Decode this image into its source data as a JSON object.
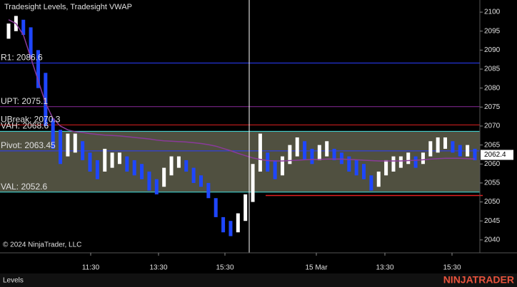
{
  "chart_data": {
    "type": "candlestick",
    "title": "Tradesight Levels, Tradesight VWAP",
    "copyright": "© 2024 NinjaTrader, LLC",
    "tab": "Levels",
    "brand": "NINJATRADER",
    "ylim": [
      2036.6,
      2103.2
    ],
    "yticks": [
      2100,
      2095,
      2090,
      2085,
      2080,
      2075,
      2070,
      2065,
      2060,
      2055,
      2050,
      2045,
      2040
    ],
    "x_labels": [
      "11:30",
      "13:30",
      "15:30",
      "15 Mar",
      "13:30",
      "15:30"
    ],
    "color_up": "#ffffff",
    "color_down": "#1e46ff",
    "low": [
      2093,
      2095,
      2094,
      2088,
      2080,
      2070,
      2064,
      2060,
      2062,
      2063,
      2061,
      2058,
      2056,
      2058,
      2059,
      2060,
      2058,
      2057,
      2056,
      2053,
      2052,
      2054,
      2057,
      2059,
      2058,
      2055,
      2054,
      2051,
      2046,
      2042,
      2041,
      2042,
      2045,
      2050,
      2058,
      2058,
      2056,
      2057,
      2060,
      2062,
      2061,
      2060,
      2061,
      2062,
      2061,
      2060,
      2058,
      2057,
      2056,
      2053,
      2054,
      2057,
      2058,
      2059,
      2060,
      2059,
      2060,
      2062,
      2063,
      2064,
      2063,
      2062,
      2062,
      2061
    ],
    "high": [
      2097,
      2099,
      2098,
      2096,
      2090,
      2084,
      2072,
      2069,
      2068,
      2068,
      2066,
      2063,
      2061,
      2064,
      2063,
      2063,
      2062,
      2061,
      2060,
      2058,
      2056,
      2059,
      2062,
      2062,
      2061,
      2059,
      2057,
      2055,
      2051,
      2046,
      2045,
      2047,
      2052,
      2060,
      2068,
      2063,
      2061,
      2062,
      2065,
      2067,
      2066,
      2064,
      2065,
      2066,
      2064,
      2063,
      2062,
      2061,
      2060,
      2057,
      2058,
      2061,
      2062,
      2062,
      2063,
      2062,
      2063,
      2066,
      2067,
      2067,
      2066,
      2065,
      2065,
      2064
    ],
    "vwap": {
      "name": "Tradesight VWAP",
      "color": "#8a3a9a",
      "values": [
        2098,
        2097,
        2094,
        2088,
        2082,
        2076,
        2072,
        2070,
        2069,
        2068.5,
        2068.3,
        2068,
        2067.8,
        2067.6,
        2067.5,
        2067.4,
        2067.2,
        2067,
        2066.8,
        2066.6,
        2066.3,
        2066.1,
        2066,
        2065.9,
        2065.8,
        2065.6,
        2065.4,
        2065.1,
        2064.7,
        2064.1,
        2063.5,
        2062.8,
        2062.2,
        2061.6,
        2061.2,
        2060.9,
        2060.8,
        2060.8,
        2060.9,
        2061,
        2061.1,
        2061.2,
        2061.2,
        2061.3,
        2061.3,
        2061.3,
        2061.2,
        2061.1,
        2061,
        2060.9,
        2060.8,
        2060.8,
        2060.8,
        2060.8,
        2060.9,
        2061,
        2061.1,
        2061.3,
        2061.4,
        2061.5,
        2061.5,
        2061.5,
        2061.4,
        2061.3
      ]
    },
    "levels": [
      {
        "label": "R1: 2086.6",
        "value": 2086.6,
        "color": "#2a3cff"
      },
      {
        "label": "UPT: 2075.1",
        "value": 2075.1,
        "color": "#8a2a9a"
      },
      {
        "label": "UBreak: 2070.3",
        "value": 2070.3,
        "color": "#e02020"
      },
      {
        "label": "VAH: 2068.6",
        "value": 2068.6,
        "color": "#40e0e0"
      },
      {
        "label": "Pivot: 2063.45",
        "value": 2063.45,
        "color": "#2a3cff"
      },
      {
        "label": "VAL: 2052.6",
        "value": 2052.6,
        "color": "#40e0e0"
      }
    ],
    "value_area": {
      "color": "#6b6b55"
    },
    "marker_line": {
      "value": 2051.7,
      "color": "#e02020"
    },
    "last_price": 2062.4
  }
}
